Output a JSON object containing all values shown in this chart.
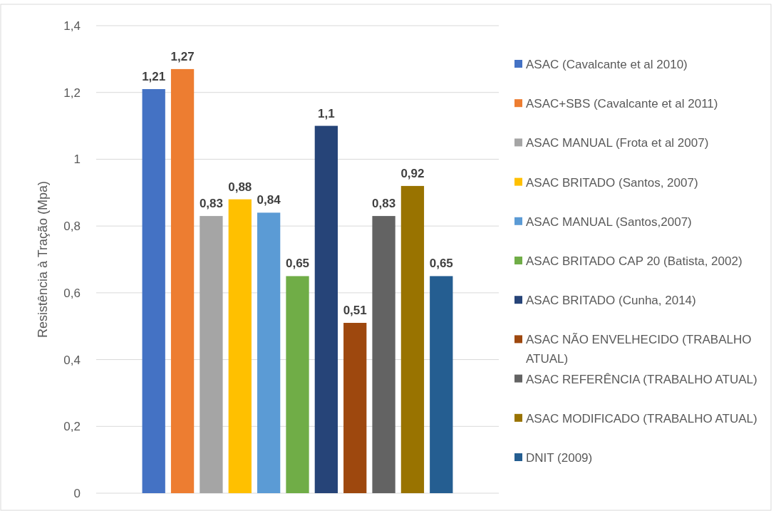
{
  "chart_data": {
    "type": "bar",
    "ylabel": "Resistência à Tração (Mpa)",
    "categories": [
      null
    ],
    "series": [
      {
        "name": "ASAC (Cavalcante et al 2010)",
        "color": "#4472c4",
        "values": [
          1.21
        ],
        "value_labels": [
          "1,21"
        ]
      },
      {
        "name": "ASAC+SBS (Cavalcante et al 2011)",
        "color": "#ed7d31",
        "values": [
          1.27
        ],
        "value_labels": [
          "1,27"
        ]
      },
      {
        "name": "ASAC MANUAL (Frota et al 2007)",
        "color": "#a5a5a5",
        "values": [
          0.83
        ],
        "value_labels": [
          "0,83"
        ]
      },
      {
        "name": "ASAC BRITADO (Santos, 2007)",
        "color": "#ffc000",
        "values": [
          0.88
        ],
        "value_labels": [
          "0,88"
        ]
      },
      {
        "name": "ASAC MANUAL (Santos,2007)",
        "color": "#5b9bd5",
        "values": [
          0.84
        ],
        "value_labels": [
          "0,84"
        ]
      },
      {
        "name": "ASAC BRITADO CAP 20 (Batista, 2002)",
        "color": "#70ad47",
        "values": [
          0.65
        ],
        "value_labels": [
          "0,65"
        ]
      },
      {
        "name": "ASAC BRITADO (Cunha, 2014)",
        "color": "#264478",
        "values": [
          1.1
        ],
        "value_labels": [
          "1,1"
        ]
      },
      {
        "name": "ASAC NÃO ENVELHECIDO (TRABALHO ATUAL)",
        "color": "#9e480e",
        "values": [
          0.51
        ],
        "value_labels": [
          "0,51"
        ]
      },
      {
        "name": "ASAC REFERÊNCIA (TRABALHO ATUAL)",
        "color": "#636363",
        "values": [
          0.83
        ],
        "value_labels": [
          "0,83"
        ]
      },
      {
        "name": "ASAC MODIFICADO (TRABALHO ATUAL)",
        "color": "#997300",
        "values": [
          0.92
        ],
        "value_labels": [
          "0,92"
        ]
      },
      {
        "name": "DNIT (2009)",
        "color": "#255e91",
        "values": [
          0.65
        ],
        "value_labels": [
          "0,65"
        ]
      }
    ],
    "ylim": [
      0,
      1.4
    ],
    "yticks": [
      0,
      {
        "value": 0.2,
        "label": "0,2"
      },
      {
        "value": 0.4,
        "label": "0,4"
      },
      {
        "value": 0.6,
        "label": "0,6"
      },
      {
        "value": 0.8,
        "label": "0,8"
      },
      1,
      {
        "value": 1.2,
        "label": "1,2"
      },
      {
        "value": 1.4,
        "label": "1,4"
      }
    ],
    "grid": "y",
    "legend": "right"
  }
}
